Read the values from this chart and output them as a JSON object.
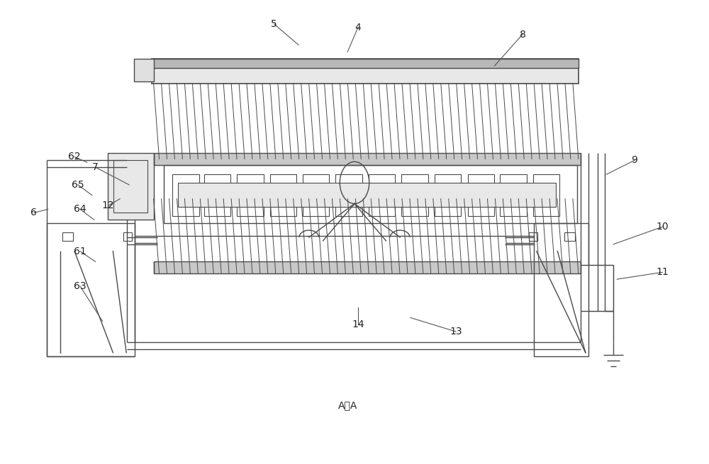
{
  "bg_color": "#ffffff",
  "lc": "#4a4a4a",
  "lw": 1.0,
  "fig_width": 10.0,
  "fig_height": 6.55
}
